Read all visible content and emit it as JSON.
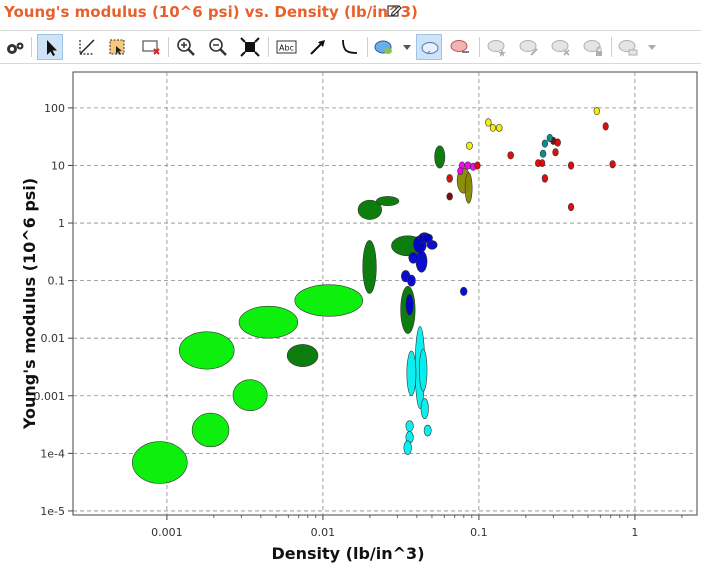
{
  "window": {
    "title": "Young's modulus (10^6 psi) vs. Density (lb/in^3)"
  },
  "toolbar": {
    "tools": [
      {
        "name": "settings-gears",
        "icon": "gears-icon",
        "active": false,
        "enabled": true
      },
      {
        "name": "select-pointer",
        "icon": "arrow-pointer-icon",
        "active": true,
        "enabled": true
      },
      {
        "name": "axis-tool",
        "icon": "axis-icon",
        "active": false,
        "enabled": true
      },
      {
        "name": "region-select",
        "icon": "region-select-icon",
        "active": false,
        "enabled": true
      },
      {
        "name": "box-delete",
        "icon": "box-delete-icon",
        "active": false,
        "enabled": true
      },
      {
        "name": "zoom-in",
        "icon": "zoom-in-icon",
        "active": false,
        "enabled": true
      },
      {
        "name": "zoom-out",
        "icon": "zoom-out-icon",
        "active": false,
        "enabled": true
      },
      {
        "name": "fit-to-window",
        "icon": "fit-icon",
        "active": false,
        "enabled": true
      },
      {
        "name": "text-label",
        "icon": "text-abc-icon",
        "active": false,
        "enabled": true
      },
      {
        "name": "arrow-line",
        "icon": "arrow-line-icon",
        "active": false,
        "enabled": true
      },
      {
        "name": "curve-line",
        "icon": "curve-icon",
        "active": false,
        "enabled": true
      },
      {
        "name": "material-bubble",
        "icon": "bubble-icon",
        "active": false,
        "enabled": true
      },
      {
        "name": "bubble-mode",
        "icon": "bubble-outline-icon",
        "active": true,
        "enabled": true
      },
      {
        "name": "bubble-hide",
        "icon": "bubble-hide-icon",
        "active": false,
        "enabled": true
      },
      {
        "name": "bubble-star",
        "icon": "bubble-star-icon",
        "active": false,
        "enabled": false
      },
      {
        "name": "bubble-edit",
        "icon": "bubble-edit-icon",
        "active": false,
        "enabled": false
      },
      {
        "name": "bubble-delete",
        "icon": "bubble-delete-icon",
        "active": false,
        "enabled": false
      },
      {
        "name": "bubble-lock",
        "icon": "bubble-lock-icon",
        "active": false,
        "enabled": false
      },
      {
        "name": "bubble-options",
        "icon": "bubble-options-icon",
        "active": false,
        "enabled": false
      }
    ]
  },
  "chart_data": {
    "type": "scatter",
    "title": "",
    "xlabel": "Density (lb/in^3)",
    "ylabel": "Young's modulus (10^6 psi)",
    "x_scale": "log",
    "y_scale": "log",
    "xlim": [
      0.00025,
      2.5
    ],
    "ylim": [
      8.5e-06,
      420
    ],
    "x_ticks": [
      0.001,
      0.01,
      0.1,
      1
    ],
    "x_tick_labels": [
      "0.001",
      "0.01",
      "0.1",
      "1"
    ],
    "y_ticks": [
      1e-05,
      0.0001,
      0.001,
      0.01,
      0.1,
      1,
      10,
      100
    ],
    "y_tick_labels": [
      "1e-5",
      "1e-4",
      "0.001",
      "0.01",
      "0.1",
      "1",
      "10",
      "100"
    ],
    "grid": true,
    "legend": "none",
    "colors": {
      "foam": "#00ee00",
      "polymer": "#007700",
      "elastomer": "#00eeee",
      "navy_group": "#0000cc",
      "olive_group": "#888800",
      "metal": "#dd0000",
      "ceramic": "#eeee00",
      "teal_group": "#008888",
      "magenta_group": "#ee00ee",
      "maroon_group": "#770000"
    },
    "bubbles": [
      {
        "group": "foam",
        "x": 0.0009,
        "y": 7e-05,
        "xspan": [
          0.0006,
          0.00135
        ],
        "yspan": [
          3e-05,
          0.00016
        ]
      },
      {
        "group": "foam",
        "x": 0.0019,
        "y": 0.00025,
        "xspan": [
          0.00145,
          0.0025
        ],
        "yspan": [
          0.00013,
          0.0005
        ]
      },
      {
        "group": "foam",
        "x": 0.0034,
        "y": 0.001,
        "xspan": [
          0.00265,
          0.0044
        ],
        "yspan": [
          0.00055,
          0.0019
        ]
      },
      {
        "group": "foam",
        "x": 0.0018,
        "y": 0.006,
        "xspan": [
          0.0012,
          0.0027
        ],
        "yspan": [
          0.0029,
          0.013
        ]
      },
      {
        "group": "foam",
        "x": 0.0045,
        "y": 0.019,
        "xspan": [
          0.0029,
          0.0069
        ],
        "yspan": [
          0.01,
          0.036
        ]
      },
      {
        "group": "foam",
        "x": 0.011,
        "y": 0.045,
        "xspan": [
          0.0066,
          0.018
        ],
        "yspan": [
          0.024,
          0.085
        ]
      },
      {
        "group": "polymer",
        "x": 0.0074,
        "y": 0.005,
        "xspan": [
          0.0059,
          0.0093
        ],
        "yspan": [
          0.0032,
          0.0078
        ]
      },
      {
        "group": "polymer",
        "x": 0.02,
        "y": 0.17,
        "xspan": [
          0.018,
          0.022
        ],
        "yspan": [
          0.06,
          0.5
        ]
      },
      {
        "group": "polymer",
        "x": 0.02,
        "y": 1.7,
        "xspan": [
          0.0168,
          0.0238
        ],
        "yspan": [
          1.15,
          2.5
        ]
      },
      {
        "group": "polymer",
        "x": 0.026,
        "y": 2.4,
        "xspan": [
          0.022,
          0.0307
        ],
        "yspan": [
          2.0,
          2.9
        ]
      },
      {
        "group": "polymer",
        "x": 0.035,
        "y": 0.4,
        "xspan": [
          0.0275,
          0.0445
        ],
        "yspan": [
          0.27,
          0.6
        ]
      },
      {
        "group": "polymer",
        "x": 0.035,
        "y": 0.03,
        "xspan": [
          0.0315,
          0.039
        ],
        "yspan": [
          0.012,
          0.08
        ]
      },
      {
        "group": "polymer",
        "x": 0.056,
        "y": 14,
        "xspan": [
          0.052,
          0.0605
        ],
        "yspan": [
          9,
          22
        ]
      },
      {
        "group": "navy_group",
        "x": 0.042,
        "y": 0.42,
        "xspan": [
          0.038,
          0.046
        ],
        "yspan": [
          0.3,
          0.6
        ]
      },
      {
        "group": "navy_group",
        "x": 0.045,
        "y": 0.55,
        "xspan": [
          0.041,
          0.049
        ],
        "yspan": [
          0.45,
          0.68
        ]
      },
      {
        "group": "navy_group",
        "x": 0.05,
        "y": 0.42,
        "xspan": [
          0.0465,
          0.054
        ],
        "yspan": [
          0.35,
          0.5
        ]
      },
      {
        "group": "navy_group",
        "x": 0.047,
        "y": 0.55,
        "xspan": [
          0.0435,
          0.0505
        ],
        "yspan": [
          0.47,
          0.65
        ]
      },
      {
        "group": "navy_group",
        "x": 0.043,
        "y": 0.22,
        "xspan": [
          0.0395,
          0.0465
        ],
        "yspan": [
          0.14,
          0.33
        ]
      },
      {
        "group": "navy_group",
        "x": 0.038,
        "y": 0.25,
        "xspan": [
          0.0355,
          0.0405
        ],
        "yspan": [
          0.2,
          0.31
        ]
      },
      {
        "group": "navy_group",
        "x": 0.034,
        "y": 0.12,
        "xspan": [
          0.0318,
          0.0362
        ],
        "yspan": [
          0.095,
          0.15
        ]
      },
      {
        "group": "navy_group",
        "x": 0.037,
        "y": 0.1,
        "xspan": [
          0.0348,
          0.0392
        ],
        "yspan": [
          0.08,
          0.125
        ]
      },
      {
        "group": "navy_group",
        "x": 0.036,
        "y": 0.038,
        "xspan": [
          0.034,
          0.038
        ],
        "yspan": [
          0.025,
          0.058
        ]
      },
      {
        "group": "navy_group",
        "x": 0.08,
        "y": 0.065,
        "xspan": [
          0.076,
          0.084
        ],
        "yspan": [
          0.055,
          0.077
        ]
      },
      {
        "group": "elastomer",
        "x": 0.042,
        "y": 0.004,
        "xspan": [
          0.039,
          0.045
        ],
        "yspan": [
          0.0006,
          0.016
        ]
      },
      {
        "group": "elastomer",
        "x": 0.037,
        "y": 0.0024,
        "xspan": [
          0.0345,
          0.0395
        ],
        "yspan": [
          0.001,
          0.006
        ]
      },
      {
        "group": "elastomer",
        "x": 0.044,
        "y": 0.0028,
        "xspan": [
          0.0415,
          0.0465
        ],
        "yspan": [
          0.0012,
          0.0065
        ]
      },
      {
        "group": "elastomer",
        "x": 0.045,
        "y": 0.0006,
        "xspan": [
          0.0425,
          0.0475
        ],
        "yspan": [
          0.0004,
          0.0009
        ]
      },
      {
        "group": "elastomer",
        "x": 0.047,
        "y": 0.00025,
        "xspan": [
          0.0445,
          0.0495
        ],
        "yspan": [
          0.0002,
          0.00031
        ]
      },
      {
        "group": "elastomer",
        "x": 0.036,
        "y": 0.0003,
        "xspan": [
          0.034,
          0.038
        ],
        "yspan": [
          0.00024,
          0.00037
        ]
      },
      {
        "group": "elastomer",
        "x": 0.036,
        "y": 0.00019,
        "xspan": [
          0.034,
          0.038
        ],
        "yspan": [
          0.00015,
          0.00024
        ]
      },
      {
        "group": "elastomer",
        "x": 0.035,
        "y": 0.000125,
        "xspan": [
          0.033,
          0.037
        ],
        "yspan": [
          9.5e-05,
          0.000165
        ]
      },
      {
        "group": "olive_group",
        "x": 0.08,
        "y": 5.5,
        "xspan": [
          0.0725,
          0.088
        ],
        "yspan": [
          3.3,
          9
        ]
      },
      {
        "group": "olive_group",
        "x": 0.086,
        "y": 4,
        "xspan": [
          0.0815,
          0.0905
        ],
        "yspan": [
          2.2,
          7.5
        ]
      },
      {
        "group": "maroon_group",
        "x": 0.065,
        "y": 2.9,
        "xspan": [
          0.0622,
          0.0678
        ],
        "yspan": [
          2.5,
          3.35
        ]
      },
      {
        "group": "maroon_group",
        "x": 0.3,
        "y": 27,
        "xspan": [
          0.288,
          0.312
        ],
        "yspan": [
          23,
          31
        ]
      },
      {
        "group": "magenta_group",
        "x": 0.078,
        "y": 10,
        "xspan": [
          0.075,
          0.081
        ],
        "yspan": [
          8.6,
          11.6
        ]
      },
      {
        "group": "magenta_group",
        "x": 0.085,
        "y": 10,
        "xspan": [
          0.081,
          0.089
        ],
        "yspan": [
          8.6,
          11.6
        ]
      },
      {
        "group": "magenta_group",
        "x": 0.092,
        "y": 9.5,
        "xspan": [
          0.088,
          0.096
        ],
        "yspan": [
          8.2,
          11
        ]
      },
      {
        "group": "magenta_group",
        "x": 0.076,
        "y": 8,
        "xspan": [
          0.073,
          0.079
        ],
        "yspan": [
          6.9,
          9.3
        ]
      },
      {
        "group": "metal",
        "x": 0.065,
        "y": 6,
        "xspan": [
          0.0622,
          0.0678
        ],
        "yspan": [
          5.1,
          7
        ]
      },
      {
        "group": "metal",
        "x": 0.098,
        "y": 10,
        "xspan": [
          0.094,
          0.102
        ],
        "yspan": [
          8.6,
          11.6
        ]
      },
      {
        "group": "metal",
        "x": 0.16,
        "y": 15,
        "xspan": [
          0.153,
          0.167
        ],
        "yspan": [
          12.9,
          17.4
        ]
      },
      {
        "group": "metal",
        "x": 0.24,
        "y": 11,
        "xspan": [
          0.23,
          0.25
        ],
        "yspan": [
          9.5,
          12.7
        ]
      },
      {
        "group": "metal",
        "x": 0.255,
        "y": 11,
        "xspan": [
          0.245,
          0.265
        ],
        "yspan": [
          9.5,
          12.7
        ]
      },
      {
        "group": "metal",
        "x": 0.265,
        "y": 6,
        "xspan": [
          0.254,
          0.276
        ],
        "yspan": [
          5.1,
          7
        ]
      },
      {
        "group": "metal",
        "x": 0.31,
        "y": 17,
        "xspan": [
          0.297,
          0.323
        ],
        "yspan": [
          14.6,
          19.7
        ]
      },
      {
        "group": "metal",
        "x": 0.32,
        "y": 25,
        "xspan": [
          0.306,
          0.334
        ],
        "yspan": [
          21.5,
          29
        ]
      },
      {
        "group": "metal",
        "x": 0.39,
        "y": 10,
        "xspan": [
          0.374,
          0.406
        ],
        "yspan": [
          8.6,
          11.6
        ]
      },
      {
        "group": "metal",
        "x": 0.39,
        "y": 1.9,
        "xspan": [
          0.374,
          0.406
        ],
        "yspan": [
          1.63,
          2.2
        ]
      },
      {
        "group": "metal",
        "x": 0.65,
        "y": 48,
        "xspan": [
          0.624,
          0.676
        ],
        "yspan": [
          41,
          55.5
        ]
      },
      {
        "group": "metal",
        "x": 0.72,
        "y": 10.5,
        "xspan": [
          0.69,
          0.75
        ],
        "yspan": [
          9,
          12.2
        ]
      },
      {
        "group": "ceramic",
        "x": 0.087,
        "y": 22,
        "xspan": [
          0.083,
          0.091
        ],
        "yspan": [
          19,
          25.5
        ]
      },
      {
        "group": "ceramic",
        "x": 0.115,
        "y": 56,
        "xspan": [
          0.11,
          0.12
        ],
        "yspan": [
          48,
          65
        ]
      },
      {
        "group": "ceramic",
        "x": 0.123,
        "y": 45,
        "xspan": [
          0.118,
          0.128
        ],
        "yspan": [
          39,
          52
        ]
      },
      {
        "group": "ceramic",
        "x": 0.135,
        "y": 45,
        "xspan": [
          0.129,
          0.141
        ],
        "yspan": [
          39,
          52
        ]
      },
      {
        "group": "ceramic",
        "x": 0.57,
        "y": 88,
        "xspan": [
          0.546,
          0.594
        ],
        "yspan": [
          76,
          102
        ]
      },
      {
        "group": "teal_group",
        "x": 0.258,
        "y": 16,
        "xspan": [
          0.247,
          0.269
        ],
        "yspan": [
          13.8,
          18.5
        ]
      },
      {
        "group": "teal_group",
        "x": 0.265,
        "y": 24,
        "xspan": [
          0.254,
          0.276
        ],
        "yspan": [
          20.7,
          27.8
        ]
      },
      {
        "group": "teal_group",
        "x": 0.285,
        "y": 30,
        "xspan": [
          0.273,
          0.297
        ],
        "yspan": [
          25.8,
          34.8
        ]
      }
    ]
  }
}
